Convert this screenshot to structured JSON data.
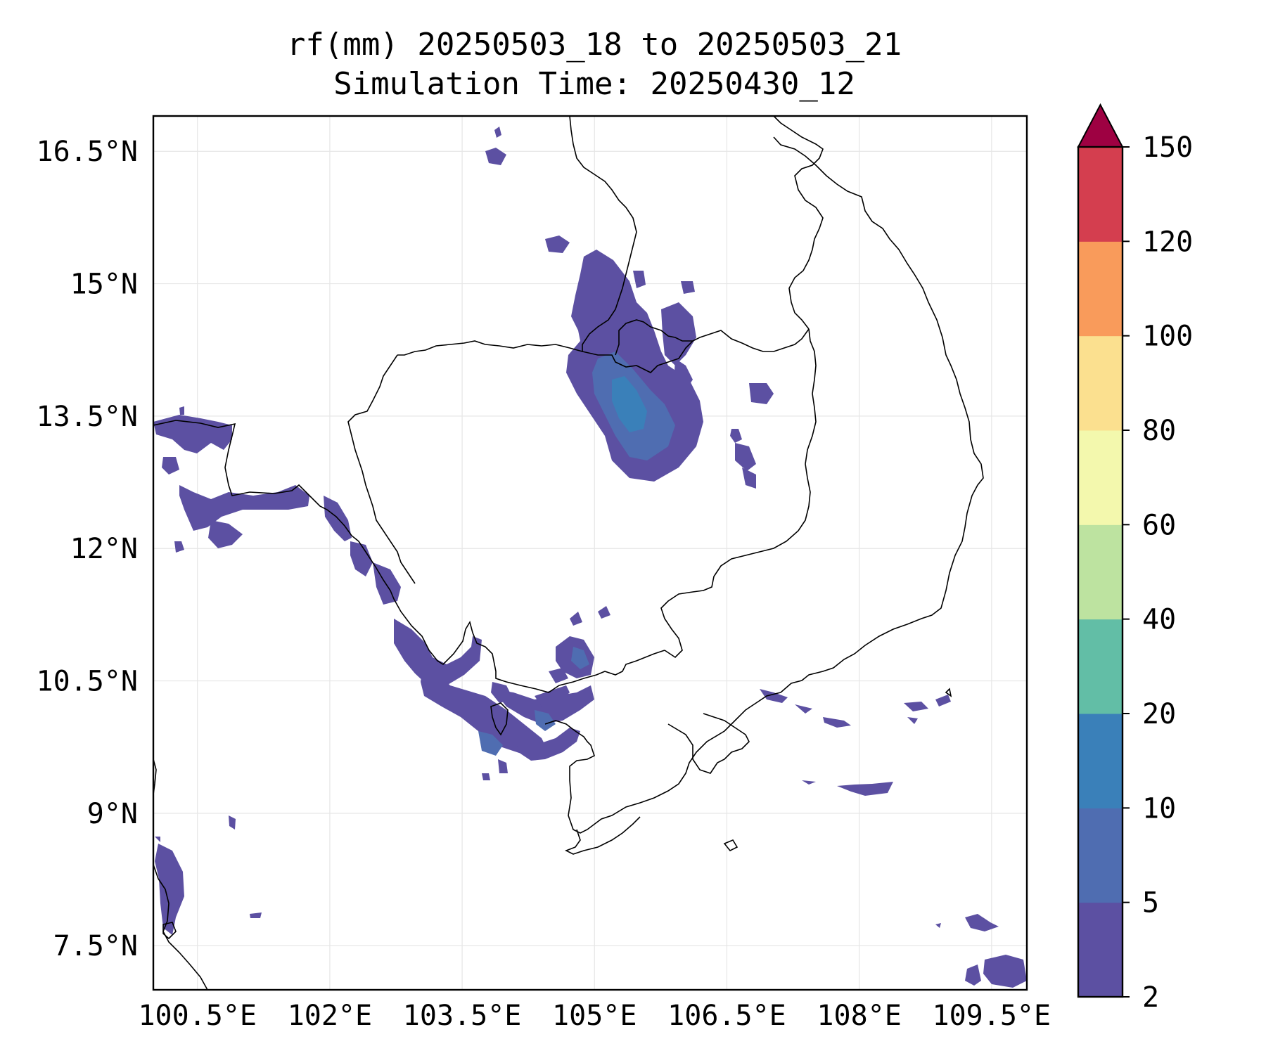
{
  "title": {
    "line1": "rf(mm) 20250503_18 to 20250503_21",
    "line2": "Simulation Time: 20250430_12"
  },
  "map": {
    "lon_range": [
      100.0,
      109.9
    ],
    "lat_range": [
      7.0,
      16.9
    ],
    "x_ticks": [
      {
        "value": 100.5,
        "label": "100.5°E"
      },
      {
        "value": 102.0,
        "label": "102°E"
      },
      {
        "value": 103.5,
        "label": "103.5°E"
      },
      {
        "value": 105.0,
        "label": "105°E"
      },
      {
        "value": 106.5,
        "label": "106.5°E"
      },
      {
        "value": 108.0,
        "label": "108°E"
      },
      {
        "value": 109.5,
        "label": "109.5°E"
      }
    ],
    "y_ticks": [
      {
        "value": 7.5,
        "label": "7.5°N"
      },
      {
        "value": 9.0,
        "label": "9°N"
      },
      {
        "value": 10.5,
        "label": "10.5°N"
      },
      {
        "value": 12.0,
        "label": "12°N"
      },
      {
        "value": 13.5,
        "label": "13.5°N"
      },
      {
        "value": 15.0,
        "label": "15°N"
      }
    ],
    "y_ticks_extra": [
      {
        "value": 16.5,
        "label": "16.5°N"
      }
    ],
    "grid": true
  },
  "colorbar": {
    "levels": [
      "2",
      "5",
      "10",
      "20",
      "40",
      "60",
      "80",
      "100",
      "120",
      "150"
    ],
    "colors": [
      "#5c50a2",
      "#4f6db1",
      "#3a80b9",
      "#62bea6",
      "#bde3a0",
      "#f3f8ad",
      "#fbe08f",
      "#f99b5b",
      "#d43e4f"
    ],
    "extend_color": "#9e0142",
    "extend": "max"
  },
  "rain_colors": {
    "light": "#5c50a2",
    "moderate": "#4f6db1",
    "heavy": "#3a80b9",
    "very_heavy": "#62bea6"
  }
}
